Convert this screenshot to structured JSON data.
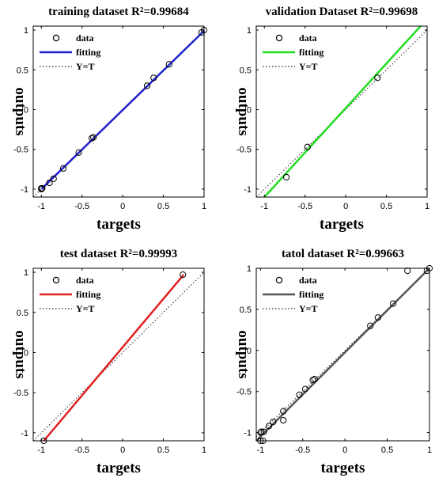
{
  "chart_data": [
    {
      "type": "scatter",
      "title": "training dataset R²=0.99684",
      "xlabel": "targets",
      "ylabel": "outputs",
      "xlim": [
        -1.1,
        1.0
      ],
      "ylim": [
        -1.1,
        1.05
      ],
      "xticks": [
        "-1",
        "-0.5",
        "0",
        "0.5",
        "1"
      ],
      "yticks": [
        "1",
        "0.5",
        "0",
        "-0.5",
        "-1"
      ],
      "legend_position": "top-left",
      "legend": [
        "data",
        "fitting",
        "Y=T"
      ],
      "fit_color": "#1f1fcc",
      "fit_line": {
        "x": [
          -1.0,
          1.0
        ],
        "y": [
          -1.0,
          0.99
        ]
      },
      "x": [
        -1.0,
        -1.0,
        -0.99,
        -0.9,
        -0.85,
        -0.73,
        -0.54,
        -0.38,
        -0.36,
        0.3,
        0.38,
        0.57,
        0.97,
        1.0
      ],
      "y": [
        -1.0,
        -0.99,
        -0.99,
        -0.92,
        -0.87,
        -0.74,
        -0.54,
        -0.36,
        -0.35,
        0.3,
        0.4,
        0.57,
        0.97,
        1.0
      ]
    },
    {
      "type": "scatter",
      "title": "validation Dataset R²=0.99698",
      "xlabel": "targets",
      "ylabel": "outputs",
      "xlim": [
        -1.1,
        1.0
      ],
      "ylim": [
        -1.1,
        1.05
      ],
      "xticks": [
        "-1",
        "-0.5",
        "0",
        "0.5",
        "1"
      ],
      "yticks": [
        "1",
        "0.5",
        "0",
        "-0.5",
        "-1"
      ],
      "legend_position": "top-left",
      "legend": [
        "data",
        "fitting",
        "Y=T"
      ],
      "fit_color": "#22dd22",
      "fit_line": {
        "x": [
          -1.0,
          0.92
        ],
        "y": [
          -1.1,
          1.05
        ]
      },
      "x": [
        -0.73,
        -0.47,
        0.39
      ],
      "y": [
        -0.85,
        -0.47,
        0.4
      ]
    },
    {
      "type": "scatter",
      "title": "test dataset R²=0.99993",
      "xlabel": "targets",
      "ylabel": "outputs",
      "xlim": [
        -1.1,
        1.0
      ],
      "ylim": [
        -1.1,
        1.05
      ],
      "xticks": [
        "-1",
        "-0.5",
        "0",
        "0.5",
        "1"
      ],
      "yticks": [
        "1",
        "0.5",
        "0",
        "-0.5",
        "-1"
      ],
      "legend_position": "top-left",
      "legend": [
        "data",
        "fitting",
        "Y=T"
      ],
      "fit_color": "#e02020",
      "fit_line": {
        "x": [
          -0.97,
          0.75
        ],
        "y": [
          -1.1,
          0.97
        ]
      },
      "x": [
        -0.97,
        0.74
      ],
      "y": [
        -1.1,
        0.97
      ]
    },
    {
      "type": "scatter",
      "title": "tatol dataset R²=0.99663",
      "xlabel": "targets",
      "ylabel": "outputs",
      "xlim": [
        -1.05,
        1.0
      ],
      "ylim": [
        -1.1,
        1.0
      ],
      "xticks": [
        "-1",
        "-0.5",
        "0",
        "0.5",
        "1"
      ],
      "yticks": [
        "1",
        "0.5",
        "0",
        "-0.5",
        "-1"
      ],
      "legend_position": "top-left",
      "legend": [
        "data",
        "fitting",
        "Y=T"
      ],
      "fit_color": "#555555",
      "fit_line": {
        "x": [
          -1.05,
          1.0
        ],
        "y": [
          -1.1,
          1.0
        ]
      },
      "x": [
        -1.0,
        -1.0,
        -0.99,
        -0.97,
        -0.96,
        -0.9,
        -0.85,
        -0.73,
        -0.73,
        -0.54,
        -0.47,
        -0.38,
        -0.36,
        0.3,
        0.39,
        0.57,
        0.74,
        0.97,
        1.0
      ],
      "y": [
        -1.0,
        -1.1,
        -0.99,
        -1.1,
        -0.99,
        -0.92,
        -0.87,
        -0.74,
        -0.85,
        -0.54,
        -0.47,
        -0.36,
        -0.35,
        0.3,
        0.4,
        0.57,
        0.97,
        0.97,
        1.0
      ]
    }
  ]
}
